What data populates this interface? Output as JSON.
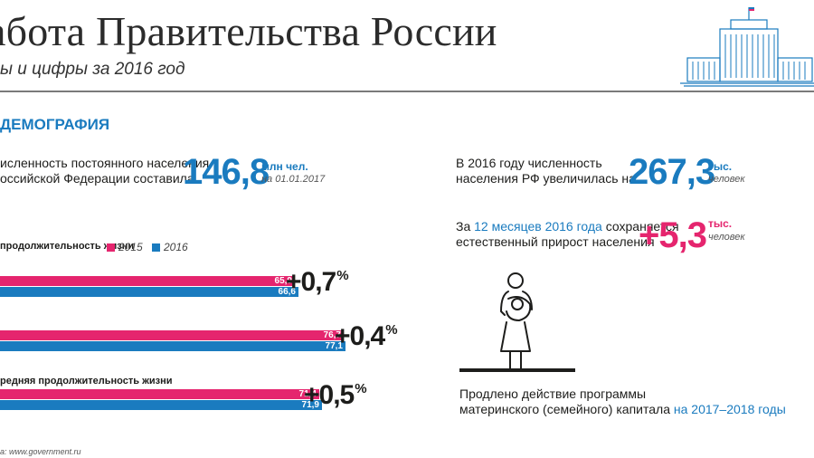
{
  "header": {
    "title": "абота Правительства России",
    "subtitle": "ы и цифры за 2016 год"
  },
  "section": {
    "title": "ДЕМОГРАФИЯ"
  },
  "population": {
    "text_line1": "исленность постоянного населения",
    "text_line2": "оссийской Федерации составила",
    "value": "146,8",
    "unit": "млн чел.",
    "note": "на 01.01.2017"
  },
  "increase": {
    "text_line1": "В 2016 году численность",
    "text_line2": "населения РФ увеличилась на",
    "value": "267,3",
    "unit": "тыс.",
    "note": "человек"
  },
  "natural_growth": {
    "prefix": "За ",
    "highlight": "12 месяцев 2016 года",
    "suffix": " сохраняется",
    "text_line2": "естественный прирост населения",
    "value": "+5,3",
    "unit": "тыс.",
    "note": "человек"
  },
  "maternity": {
    "text_line1": "Продлено действие программы",
    "text_line2_plain": "материнского (семейного) капитала ",
    "text_line2_highlight": "на 2017–2018 годы"
  },
  "footer": {
    "source": "а: www.government.ru"
  },
  "colors": {
    "year_2015": "#e5256e",
    "year_2016": "#1a7bbf",
    "accent": "#1a7bbf"
  },
  "chart_data": {
    "type": "bar",
    "orientation": "horizontal",
    "legend_title": "продолжительность жизни",
    "legend": [
      "2015",
      "2016"
    ],
    "groups": [
      {
        "label": "",
        "values": [
          65.9,
          66.6
        ],
        "value_labels": [
          "65,9",
          "66,6"
        ],
        "delta": "+0,7"
      },
      {
        "label": "",
        "values": [
          76.7,
          77.1
        ],
        "value_labels": [
          "76,7",
          "77,1"
        ],
        "delta": "+0,4"
      },
      {
        "label": "редняя  продолжительность жизни",
        "values": [
          71.4,
          71.9
        ],
        "value_labels": [
          "71,4",
          "71,9"
        ],
        "delta": "+0,5"
      }
    ],
    "delta_unit": "%"
  }
}
